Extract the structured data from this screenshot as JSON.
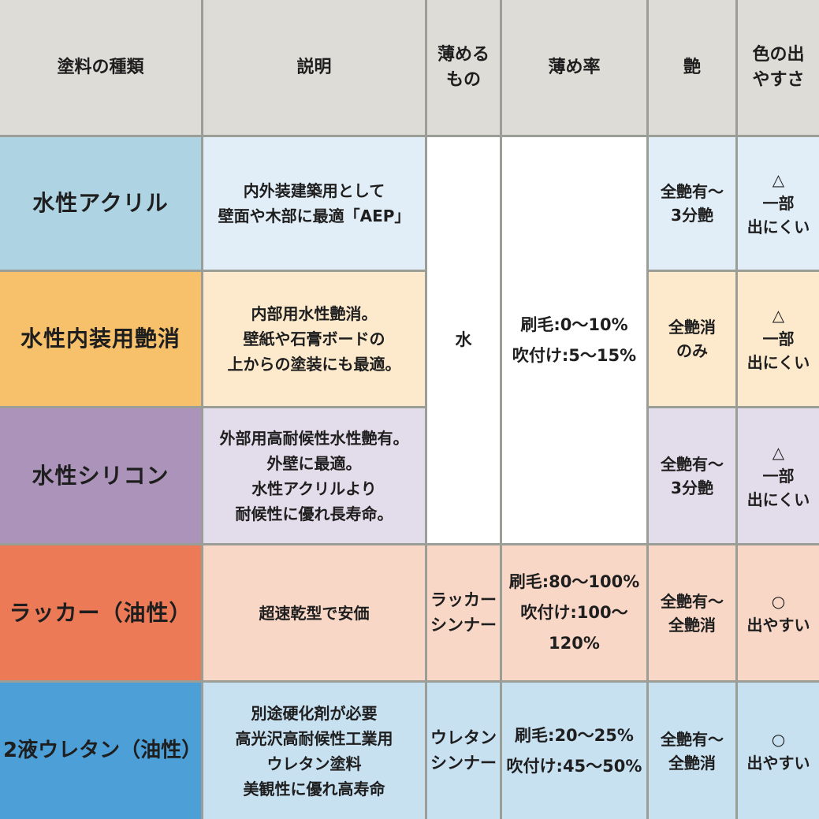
{
  "table": {
    "grid_line_color": "#9b9d97",
    "header_bg": "#dedcd6",
    "text_color": "#1e1e1e",
    "headers": {
      "type": "塗料の種類",
      "desc": "説明",
      "thinner": "薄める\nもの",
      "rate": "薄め率",
      "gloss": "艶",
      "color_ease": "色の出\nやすさ"
    },
    "shared_water": {
      "thinner": "水",
      "rate": "刷毛:0〜10%\n吹付け:5〜15%",
      "bg": "#ffffff"
    },
    "rows": [
      {
        "name": "水性アクリル",
        "name_bg": "#aed3e3",
        "cell_bg": "#e2eef7",
        "desc": "内外装建築用として\n壁面や木部に最適「AEP」",
        "gloss": "全艶有〜\n3分艶",
        "color_ease": "△\n一部\n出にくい"
      },
      {
        "name": "水性内装用艶消",
        "name_bg": "#f7c16c",
        "cell_bg": "#fdeacd",
        "desc": "内部用水性艶消。\n壁紙や石膏ボードの\n上からの塗装にも最適。",
        "gloss": "全艶消\nのみ",
        "color_ease": "△\n一部\n出にくい"
      },
      {
        "name": "水性シリコン",
        "name_bg": "#ac93ba",
        "cell_bg": "#e3dcea",
        "desc": "外部用高耐候性水性艶有。\n外壁に最適。\n水性アクリルより\n耐候性に優れ長寿命。",
        "gloss": "全艶有〜\n3分艶",
        "color_ease": "△\n一部\n出にくい"
      },
      {
        "name": "ラッカー（油性）",
        "name_bg": "#ec7a57",
        "cell_bg": "#f8d7c7",
        "desc": "超速乾型で安価",
        "thinner": "ラッカー\nシンナー",
        "rate": "刷毛:80〜100%\n吹付け:100〜120%",
        "gloss": "全艶有〜\n全艶消",
        "color_ease": "○\n出やすい"
      },
      {
        "name": "2液ウレタン（油性）",
        "name_bg": "#4c9fd7",
        "cell_bg": "#c8e1f1",
        "desc": "別途硬化剤が必要\n高光沢高耐候性工業用\nウレタン塗料\n美観性に優れ高寿命",
        "thinner": "ウレタン\nシンナー",
        "rate": "刷毛:20〜25%\n吹付け:45〜50%",
        "gloss": "全艶有〜\n全艶消",
        "color_ease": "○\n出やすい"
      }
    ]
  }
}
